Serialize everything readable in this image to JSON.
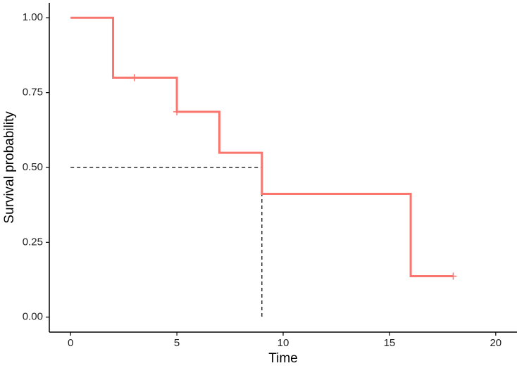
{
  "chart_data": {
    "type": "km",
    "x_label": "Time",
    "y_label": "Survival probability",
    "x": [
      0,
      2,
      5,
      7,
      9,
      16,
      18
    ],
    "values": [
      1.0,
      0.8,
      0.686,
      0.549,
      0.412,
      0.137,
      0.137
    ],
    "color": "#F8766D",
    "censored": {
      "x": [
        3,
        5,
        18
      ],
      "values": [
        0.8,
        0.686,
        0.137
      ]
    },
    "median": {
      "x": 9,
      "y": 0.5
    },
    "xlim": [
      -1,
      21
    ],
    "ylim": [
      -0.05,
      1.05
    ],
    "xticks": [
      0,
      5,
      10,
      15,
      20
    ],
    "yticks": [
      {
        "value": 0,
        "label": "0.00"
      },
      {
        "value": 0.25,
        "label": "0.25"
      },
      {
        "value": 0.5,
        "label": "0.50"
      },
      {
        "value": 0.75,
        "label": "0.75"
      },
      {
        "value": 1,
        "label": "1.00"
      }
    ]
  }
}
